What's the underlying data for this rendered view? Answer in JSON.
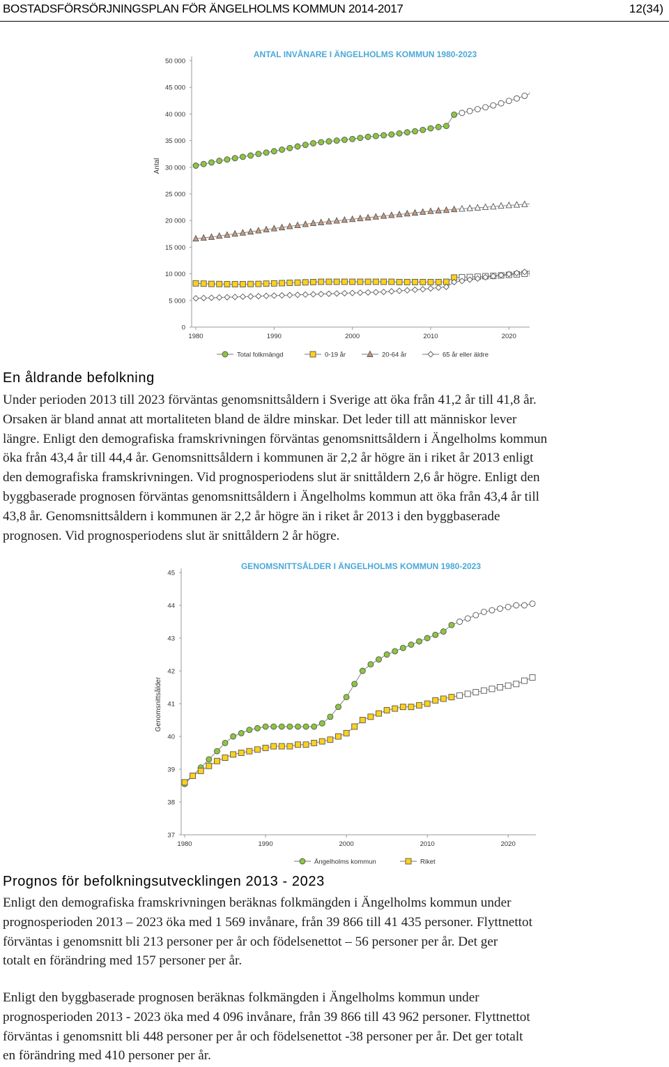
{
  "header": {
    "title": "BOSTADSFÖRSÖRJNINGSPLAN FÖR ÄNGELHOLMS KOMMUN 2014-2017",
    "page": "12(34)"
  },
  "chart1": {
    "chart_data": {
      "type": "line",
      "title": "ANTAL INVÅNARE I ÄNGELHOLMS KOMMUN 1980-2023",
      "xlabel": "",
      "ylabel": "Antal",
      "xlim": [
        1980,
        2023
      ],
      "ylim": [
        0,
        50000
      ],
      "x_ticks": [
        1980,
        1990,
        2000,
        2010,
        2020
      ],
      "x_tick_labels": [
        "1980",
        "1990",
        "2000",
        "2010",
        "2020"
      ],
      "y_ticks": [
        0,
        5000,
        10000,
        15000,
        20000,
        25000,
        30000,
        35000,
        40000,
        45000,
        50000
      ],
      "y_tick_labels": [
        "0",
        "5 000",
        "10 000",
        "15 000",
        "20 000",
        "25 000",
        "30 000",
        "35 000",
        "40 000",
        "45 000",
        "50 000"
      ],
      "forecast_from": 2013,
      "grid": false,
      "legend_position": "bottom",
      "series": [
        {
          "name": "Total folkmängd",
          "marker": "circle",
          "color": "#8dc63f",
          "x": [
            1980,
            1981,
            1982,
            1983,
            1984,
            1985,
            1986,
            1987,
            1988,
            1989,
            1990,
            1991,
            1992,
            1993,
            1994,
            1995,
            1996,
            1997,
            1998,
            1999,
            2000,
            2001,
            2002,
            2003,
            2004,
            2005,
            2006,
            2007,
            2008,
            2009,
            2010,
            2011,
            2012,
            2013,
            2014,
            2015,
            2016,
            2017,
            2018,
            2019,
            2020,
            2021,
            2022,
            2023
          ],
          "values": [
            30300,
            30600,
            30900,
            31200,
            31450,
            31700,
            31950,
            32200,
            32500,
            32750,
            33000,
            33300,
            33600,
            33900,
            34200,
            34500,
            34700,
            34850,
            35000,
            35150,
            35300,
            35500,
            35700,
            35850,
            36000,
            36150,
            36350,
            36550,
            36750,
            37000,
            37300,
            37550,
            37750,
            39866,
            40200,
            40550,
            40900,
            41250,
            41600,
            42000,
            42450,
            42900,
            43400,
            43962
          ]
        },
        {
          "name": "0-19 år",
          "marker": "square",
          "color": "#ffd11a",
          "x": [
            1980,
            1981,
            1982,
            1983,
            1984,
            1985,
            1986,
            1987,
            1988,
            1989,
            1990,
            1991,
            1992,
            1993,
            1994,
            1995,
            1996,
            1997,
            1998,
            1999,
            2000,
            2001,
            2002,
            2003,
            2004,
            2005,
            2006,
            2007,
            2008,
            2009,
            2010,
            2011,
            2012,
            2013,
            2014,
            2015,
            2016,
            2017,
            2018,
            2019,
            2020,
            2021,
            2022,
            2023
          ],
          "values": [
            8200,
            8150,
            8100,
            8080,
            8050,
            8050,
            8050,
            8080,
            8100,
            8150,
            8200,
            8250,
            8300,
            8350,
            8400,
            8450,
            8500,
            8500,
            8500,
            8500,
            8500,
            8500,
            8500,
            8500,
            8500,
            8500,
            8450,
            8450,
            8450,
            8450,
            8450,
            8450,
            8500,
            9300,
            9350,
            9400,
            9450,
            9550,
            9600,
            9700,
            9800,
            9900,
            10000,
            10100
          ]
        },
        {
          "name": "20-64 år",
          "marker": "triangle",
          "color": "#c99b7e",
          "x": [
            1980,
            1981,
            1982,
            1983,
            1984,
            1985,
            1986,
            1987,
            1988,
            1989,
            1990,
            1991,
            1992,
            1993,
            1994,
            1995,
            1996,
            1997,
            1998,
            1999,
            2000,
            2001,
            2002,
            2003,
            2004,
            2005,
            2006,
            2007,
            2008,
            2009,
            2010,
            2011,
            2012,
            2013,
            2014,
            2015,
            2016,
            2017,
            2018,
            2019,
            2020,
            2021,
            2022,
            2023
          ],
          "values": [
            16600,
            16750,
            16900,
            17100,
            17300,
            17500,
            17700,
            17900,
            18100,
            18300,
            18500,
            18700,
            18900,
            19100,
            19300,
            19500,
            19650,
            19800,
            19950,
            20100,
            20250,
            20400,
            20550,
            20700,
            20850,
            21000,
            21150,
            21300,
            21450,
            21600,
            21750,
            21850,
            21950,
            22100,
            22200,
            22300,
            22400,
            22500,
            22600,
            22750,
            22850,
            22950,
            23050,
            23200
          ]
        },
        {
          "name": "65 år eller äldre",
          "marker": "diamond",
          "color": "#ffffff",
          "x": [
            1980,
            1981,
            1982,
            1983,
            1984,
            1985,
            1986,
            1987,
            1988,
            1989,
            1990,
            1991,
            1992,
            1993,
            1994,
            1995,
            1996,
            1997,
            1998,
            1999,
            2000,
            2001,
            2002,
            2003,
            2004,
            2005,
            2006,
            2007,
            2008,
            2009,
            2010,
            2011,
            2012,
            2013,
            2014,
            2015,
            2016,
            2017,
            2018,
            2019,
            2020,
            2021,
            2022,
            2023
          ],
          "values": [
            5400,
            5450,
            5500,
            5550,
            5600,
            5650,
            5700,
            5750,
            5800,
            5850,
            5900,
            5950,
            6000,
            6050,
            6100,
            6150,
            6200,
            6250,
            6300,
            6350,
            6400,
            6450,
            6500,
            6550,
            6600,
            6700,
            6800,
            6900,
            7000,
            7100,
            7250,
            7400,
            7550,
            8450,
            8650,
            8900,
            9100,
            9350,
            9550,
            9750,
            9950,
            10150,
            10350,
            10550
          ]
        }
      ]
    }
  },
  "section1": {
    "heading": "En åldrande befolkning",
    "lines": [
      "Under perioden 2013 till 2023 förväntas genomsnittsåldern i Sverige att öka från 41,2 år till 41,8 år.",
      "Orsaken är bland annat att mortaliteten bland de äldre minskar. Det leder till att människor lever",
      "längre. Enligt den demografiska framskrivningen förväntas genomsnittsåldern i Ängelholms kommun",
      "öka från 43,4 år till 44,4 år. Genomsnittsåldern i kommunen är 2,2 år högre än i riket år 2013 enligt",
      "den demografiska framskrivningen. Vid prognosperiodens slut är snittåldern 2,6 år högre. Enligt den",
      "byggbaserade prognosen förväntas genomsnittsåldern i Ängelholms kommun att öka från 43,4 år till",
      "43,8 år. Genomsnittsåldern i kommunen är 2,2 år högre än i riket år 2013 i den byggbaserade",
      "prognosen. Vid prognosperiodens slut är snittåldern 2 år högre."
    ]
  },
  "chart2": {
    "chart_data": {
      "type": "line",
      "title": "GENOMSNITTSÅLDER I ÄNGELHOLMS KOMMUN 1980-2023",
      "xlabel": "",
      "ylabel": "Genomsnittsålder",
      "xlim": [
        1980,
        2023
      ],
      "ylim": [
        37,
        45
      ],
      "x_ticks": [
        1980,
        1990,
        2000,
        2010,
        2020
      ],
      "x_tick_labels": [
        "1980",
        "1990",
        "2000",
        "2010",
        "2020"
      ],
      "y_ticks": [
        37,
        38,
        39,
        40,
        41,
        42,
        43,
        44,
        45
      ],
      "y_tick_labels": [
        "37",
        "38",
        "39",
        "40",
        "41",
        "42",
        "43",
        "44",
        "45"
      ],
      "forecast_from": 2013,
      "grid": false,
      "legend_position": "bottom",
      "series": [
        {
          "name": "Ängelholms kommun",
          "marker": "circle",
          "color": "#8dc63f",
          "x": [
            1980,
            1981,
            1982,
            1983,
            1984,
            1985,
            1986,
            1987,
            1988,
            1989,
            1990,
            1991,
            1992,
            1993,
            1994,
            1995,
            1996,
            1997,
            1998,
            1999,
            2000,
            2001,
            2002,
            2003,
            2004,
            2005,
            2006,
            2007,
            2008,
            2009,
            2010,
            2011,
            2012,
            2013,
            2014,
            2015,
            2016,
            2017,
            2018,
            2019,
            2020,
            2021,
            2022,
            2023
          ],
          "values": [
            38.55,
            38.8,
            39.05,
            39.3,
            39.55,
            39.8,
            40.0,
            40.1,
            40.2,
            40.25,
            40.3,
            40.3,
            40.3,
            40.3,
            40.3,
            40.3,
            40.3,
            40.4,
            40.6,
            40.9,
            41.2,
            41.6,
            42.0,
            42.2,
            42.35,
            42.5,
            42.6,
            42.7,
            42.8,
            42.9,
            43.0,
            43.1,
            43.2,
            43.4,
            43.5,
            43.6,
            43.7,
            43.8,
            43.85,
            43.9,
            43.95,
            44.0,
            44.0,
            44.05
          ]
        },
        {
          "name": "Riket",
          "marker": "square",
          "color": "#ffd11a",
          "x": [
            1980,
            1981,
            1982,
            1983,
            1984,
            1985,
            1986,
            1987,
            1988,
            1989,
            1990,
            1991,
            1992,
            1993,
            1994,
            1995,
            1996,
            1997,
            1998,
            1999,
            2000,
            2001,
            2002,
            2003,
            2004,
            2005,
            2006,
            2007,
            2008,
            2009,
            2010,
            2011,
            2012,
            2013,
            2014,
            2015,
            2016,
            2017,
            2018,
            2019,
            2020,
            2021,
            2022,
            2023
          ],
          "values": [
            38.6,
            38.8,
            38.95,
            39.1,
            39.25,
            39.35,
            39.45,
            39.5,
            39.55,
            39.6,
            39.65,
            39.7,
            39.7,
            39.7,
            39.75,
            39.75,
            39.8,
            39.85,
            39.9,
            40.0,
            40.1,
            40.3,
            40.5,
            40.6,
            40.7,
            40.8,
            40.85,
            40.9,
            40.9,
            40.95,
            41.0,
            41.1,
            41.15,
            41.2,
            41.25,
            41.3,
            41.35,
            41.4,
            41.45,
            41.5,
            41.55,
            41.6,
            41.7,
            41.8
          ]
        }
      ]
    }
  },
  "section2": {
    "heading": "Prognos för befolkningsutvecklingen 2013 - 2023",
    "para1": [
      "Enligt den demografiska framskrivningen beräknas folkmängden i Ängelholms kommun under",
      "prognosperioden 2013 – 2023 öka med 1 569 invånare, från 39 866 till 41 435 personer. Flyttnettot",
      "förväntas i genomsnitt bli 213 personer per år och födelsenettot – 56 personer per år. Det ger",
      "totalt en förändring med 157 personer per år."
    ],
    "para2": [
      "Enligt den byggbaserade prognosen beräknas folkmängden i Ängelholms kommun under",
      "prognosperioden 2013 - 2023 öka med 4 096 invånare, från 39 866 till 43 962 personer. Flyttnettot",
      "förväntas i genomsnitt bli 448 personer per år och födelsenettot -38 personer per år. Det ger totalt",
      "en förändring med 410 personer per år."
    ]
  }
}
